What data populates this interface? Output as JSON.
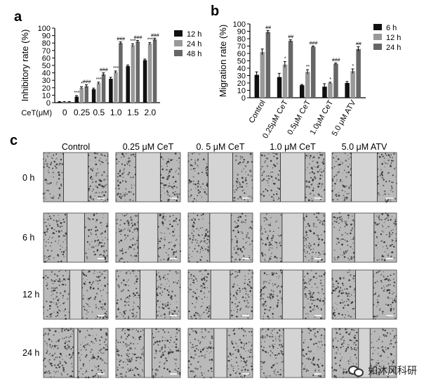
{
  "panels": {
    "a": "a",
    "b": "b",
    "c": "c"
  },
  "chart_data": [
    {
      "type": "bar",
      "panel": "a",
      "ylabel": "Inhibitory rate (%)",
      "ylim": [
        0,
        100
      ],
      "yticks": [
        0,
        10,
        20,
        30,
        40,
        50,
        60,
        70,
        80,
        90,
        100
      ],
      "xlabel_prefix": "CeT(μM)",
      "categories": [
        "0",
        "0.25",
        "0.5",
        "1.0",
        "1.5",
        "2.0"
      ],
      "series": [
        {
          "name": "12 h",
          "color": "#111111",
          "values": [
            1,
            8,
            18,
            32,
            49,
            57
          ],
          "errors": [
            0.5,
            1.5,
            1.5,
            2,
            1.5,
            1.5
          ]
        },
        {
          "name": "24 h",
          "color": "#999999",
          "values": [
            1,
            20,
            26,
            41,
            77,
            79
          ],
          "errors": [
            0.5,
            1.5,
            1.5,
            1.5,
            2,
            1.5
          ]
        },
        {
          "name": "48 h",
          "color": "#666666",
          "values": [
            1,
            22,
            38,
            80,
            82,
            85
          ],
          "errors": [
            0.5,
            2,
            2,
            1.5,
            1.5,
            1.5
          ]
        }
      ],
      "annotations": [
        {
          "category": 1,
          "series": 0,
          "text": "***"
        },
        {
          "category": 1,
          "series": 1,
          "text": "*"
        },
        {
          "category": 1,
          "series": 2,
          "text": "###"
        },
        {
          "category": 2,
          "series": 1,
          "text": "***"
        },
        {
          "category": 2,
          "series": 2,
          "text": "###"
        },
        {
          "category": 3,
          "series": 1,
          "text": "***"
        },
        {
          "category": 3,
          "series": 2,
          "text": "###"
        },
        {
          "category": 4,
          "series": 1,
          "text": "***"
        },
        {
          "category": 4,
          "series": 2,
          "text": "###"
        },
        {
          "category": 5,
          "series": 1,
          "text": "***"
        },
        {
          "category": 5,
          "series": 2,
          "text": "###"
        }
      ],
      "legend_position": "right"
    },
    {
      "type": "bar",
      "panel": "b",
      "ylabel": "Migration rate (%)",
      "ylim": [
        0,
        100
      ],
      "yticks": [
        0,
        10,
        20,
        30,
        40,
        50,
        60,
        70,
        80,
        90,
        100
      ],
      "categories": [
        "Control",
        "0.25μM CeT",
        "0.5μM CeT",
        "1.0μM CeT",
        "5.0 μM ATV"
      ],
      "series": [
        {
          "name": "6 h",
          "color": "#111111",
          "values": [
            31,
            28,
            17,
            15,
            20
          ],
          "errors": [
            4,
            5,
            1,
            4,
            2
          ]
        },
        {
          "name": "12 h",
          "color": "#999999",
          "values": [
            62,
            45,
            35,
            20,
            36
          ],
          "errors": [
            4,
            4,
            3,
            1,
            3
          ]
        },
        {
          "name": "24 h",
          "color": "#666666",
          "values": [
            89,
            77,
            69,
            46,
            66
          ],
          "errors": [
            2,
            1.5,
            1,
            1,
            3
          ]
        }
      ],
      "annotations": [
        {
          "category": 0,
          "series": 2,
          "text": "##"
        },
        {
          "category": 1,
          "series": 1,
          "text": "*"
        },
        {
          "category": 1,
          "series": 2,
          "text": "##"
        },
        {
          "category": 2,
          "series": 1,
          "text": "**"
        },
        {
          "category": 2,
          "series": 2,
          "text": "###"
        },
        {
          "category": 3,
          "series": 1,
          "text": "*"
        },
        {
          "category": 3,
          "series": 2,
          "text": "###"
        },
        {
          "category": 4,
          "series": 1,
          "text": "*"
        },
        {
          "category": 4,
          "series": 2,
          "text": "##"
        }
      ],
      "legend_position": "right"
    },
    {
      "type": "image_grid",
      "panel": "c",
      "columns": [
        "Control",
        "0.25 μM CeT",
        "0. 5 μM CeT",
        "1.0 μM CeT",
        "5.0 μM ATV"
      ],
      "rows": [
        "0 h",
        "6 h",
        "12 h",
        "24 h"
      ],
      "gap_fraction": [
        [
          0.38,
          0.38,
          0.38,
          0.38,
          0.4
        ],
        [
          0.27,
          0.3,
          0.33,
          0.33,
          0.3
        ],
        [
          0.19,
          0.25,
          0.3,
          0.32,
          0.27
        ],
        [
          0.06,
          0.12,
          0.2,
          0.28,
          0.18
        ]
      ]
    }
  ],
  "watermark": {
    "text": "如沐风科研",
    "icon": "wechat-icon"
  }
}
